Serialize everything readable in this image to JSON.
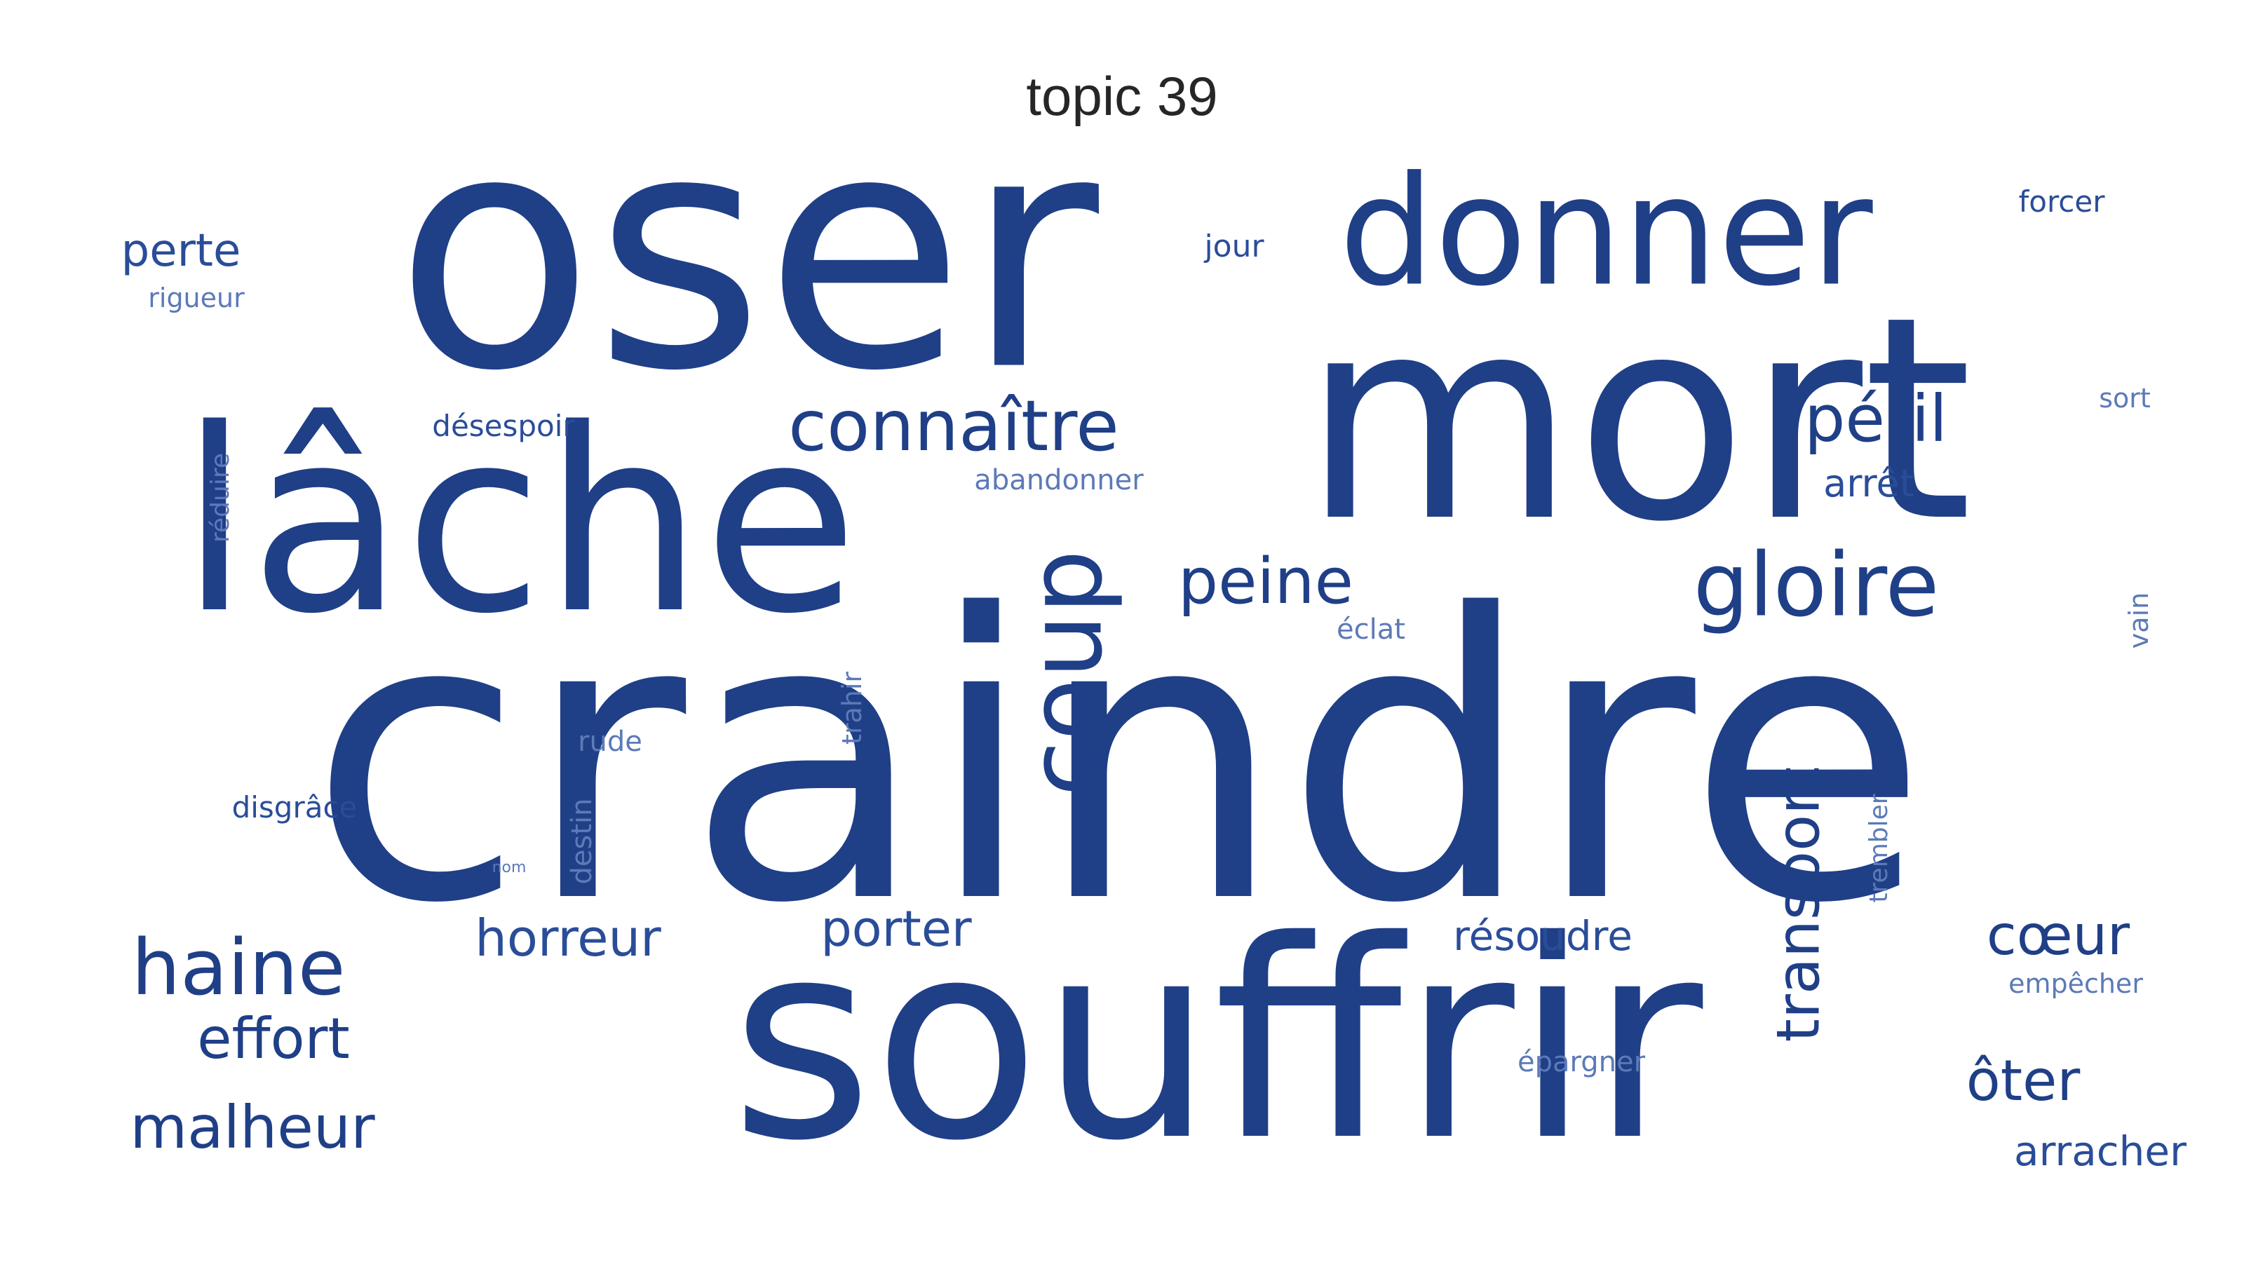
{
  "title": "topic 39",
  "colors": {
    "background": "#ffffff",
    "title": "#262626",
    "word_dark": "#1f3f87",
    "word_mid": "#2a4d99",
    "word_light": "#5c7ab8"
  },
  "words": [
    {
      "text": "craindre",
      "weight": 1.0,
      "orientation": "horizontal"
    },
    {
      "text": "oser",
      "weight": 0.86,
      "orientation": "horizontal"
    },
    {
      "text": "mort",
      "weight": 0.78,
      "orientation": "horizontal"
    },
    {
      "text": "souffrir",
      "weight": 0.74,
      "orientation": "horizontal"
    },
    {
      "text": "lâche",
      "weight": 0.68,
      "orientation": "horizontal"
    },
    {
      "text": "donner",
      "weight": 0.42,
      "orientation": "horizontal"
    },
    {
      "text": "coup",
      "weight": 0.28,
      "orientation": "vertical"
    },
    {
      "text": "gloire",
      "weight": 0.24,
      "orientation": "horizontal"
    },
    {
      "text": "haine",
      "weight": 0.21,
      "orientation": "horizontal"
    },
    {
      "text": "connaître",
      "weight": 0.19,
      "orientation": "horizontal"
    },
    {
      "text": "péril",
      "weight": 0.18,
      "orientation": "horizontal"
    },
    {
      "text": "peine",
      "weight": 0.18,
      "orientation": "horizontal"
    },
    {
      "text": "transport",
      "weight": 0.16,
      "orientation": "vertical"
    },
    {
      "text": "malheur",
      "weight": 0.16,
      "orientation": "horizontal"
    },
    {
      "text": "effort",
      "weight": 0.15,
      "orientation": "horizontal"
    },
    {
      "text": "cœur",
      "weight": 0.15,
      "orientation": "horizontal"
    },
    {
      "text": "ôter",
      "weight": 0.15,
      "orientation": "horizontal"
    },
    {
      "text": "horreur",
      "weight": 0.13,
      "orientation": "horizontal"
    },
    {
      "text": "porter",
      "weight": 0.13,
      "orientation": "horizontal"
    },
    {
      "text": "perte",
      "weight": 0.12,
      "orientation": "horizontal"
    },
    {
      "text": "arracher",
      "weight": 0.11,
      "orientation": "horizontal"
    },
    {
      "text": "résoudre",
      "weight": 0.11,
      "orientation": "horizontal"
    },
    {
      "text": "arrêt",
      "weight": 0.1,
      "orientation": "horizontal"
    },
    {
      "text": "désespoir",
      "weight": 0.08,
      "orientation": "horizontal"
    },
    {
      "text": "disgrâce",
      "weight": 0.08,
      "orientation": "horizontal"
    },
    {
      "text": "jour",
      "weight": 0.08,
      "orientation": "horizontal"
    },
    {
      "text": "forcer",
      "weight": 0.08,
      "orientation": "horizontal"
    },
    {
      "text": "abandonner",
      "weight": 0.07,
      "orientation": "horizontal"
    },
    {
      "text": "éclat",
      "weight": 0.07,
      "orientation": "horizontal"
    },
    {
      "text": "rude",
      "weight": 0.07,
      "orientation": "horizontal"
    },
    {
      "text": "destin",
      "weight": 0.07,
      "orientation": "vertical"
    },
    {
      "text": "épargner",
      "weight": 0.07,
      "orientation": "horizontal"
    },
    {
      "text": "empêcher",
      "weight": 0.07,
      "orientation": "horizontal"
    },
    {
      "text": "sort",
      "weight": 0.07,
      "orientation": "horizontal"
    },
    {
      "text": "vain",
      "weight": 0.07,
      "orientation": "vertical"
    },
    {
      "text": "rigueur",
      "weight": 0.06,
      "orientation": "horizontal"
    },
    {
      "text": "réduire",
      "weight": 0.06,
      "orientation": "vertical"
    },
    {
      "text": "trahir",
      "weight": 0.06,
      "orientation": "vertical"
    },
    {
      "text": "trembler",
      "weight": 0.06,
      "orientation": "vertical"
    },
    {
      "text": "nom",
      "weight": 0.03,
      "orientation": "horizontal"
    }
  ]
}
